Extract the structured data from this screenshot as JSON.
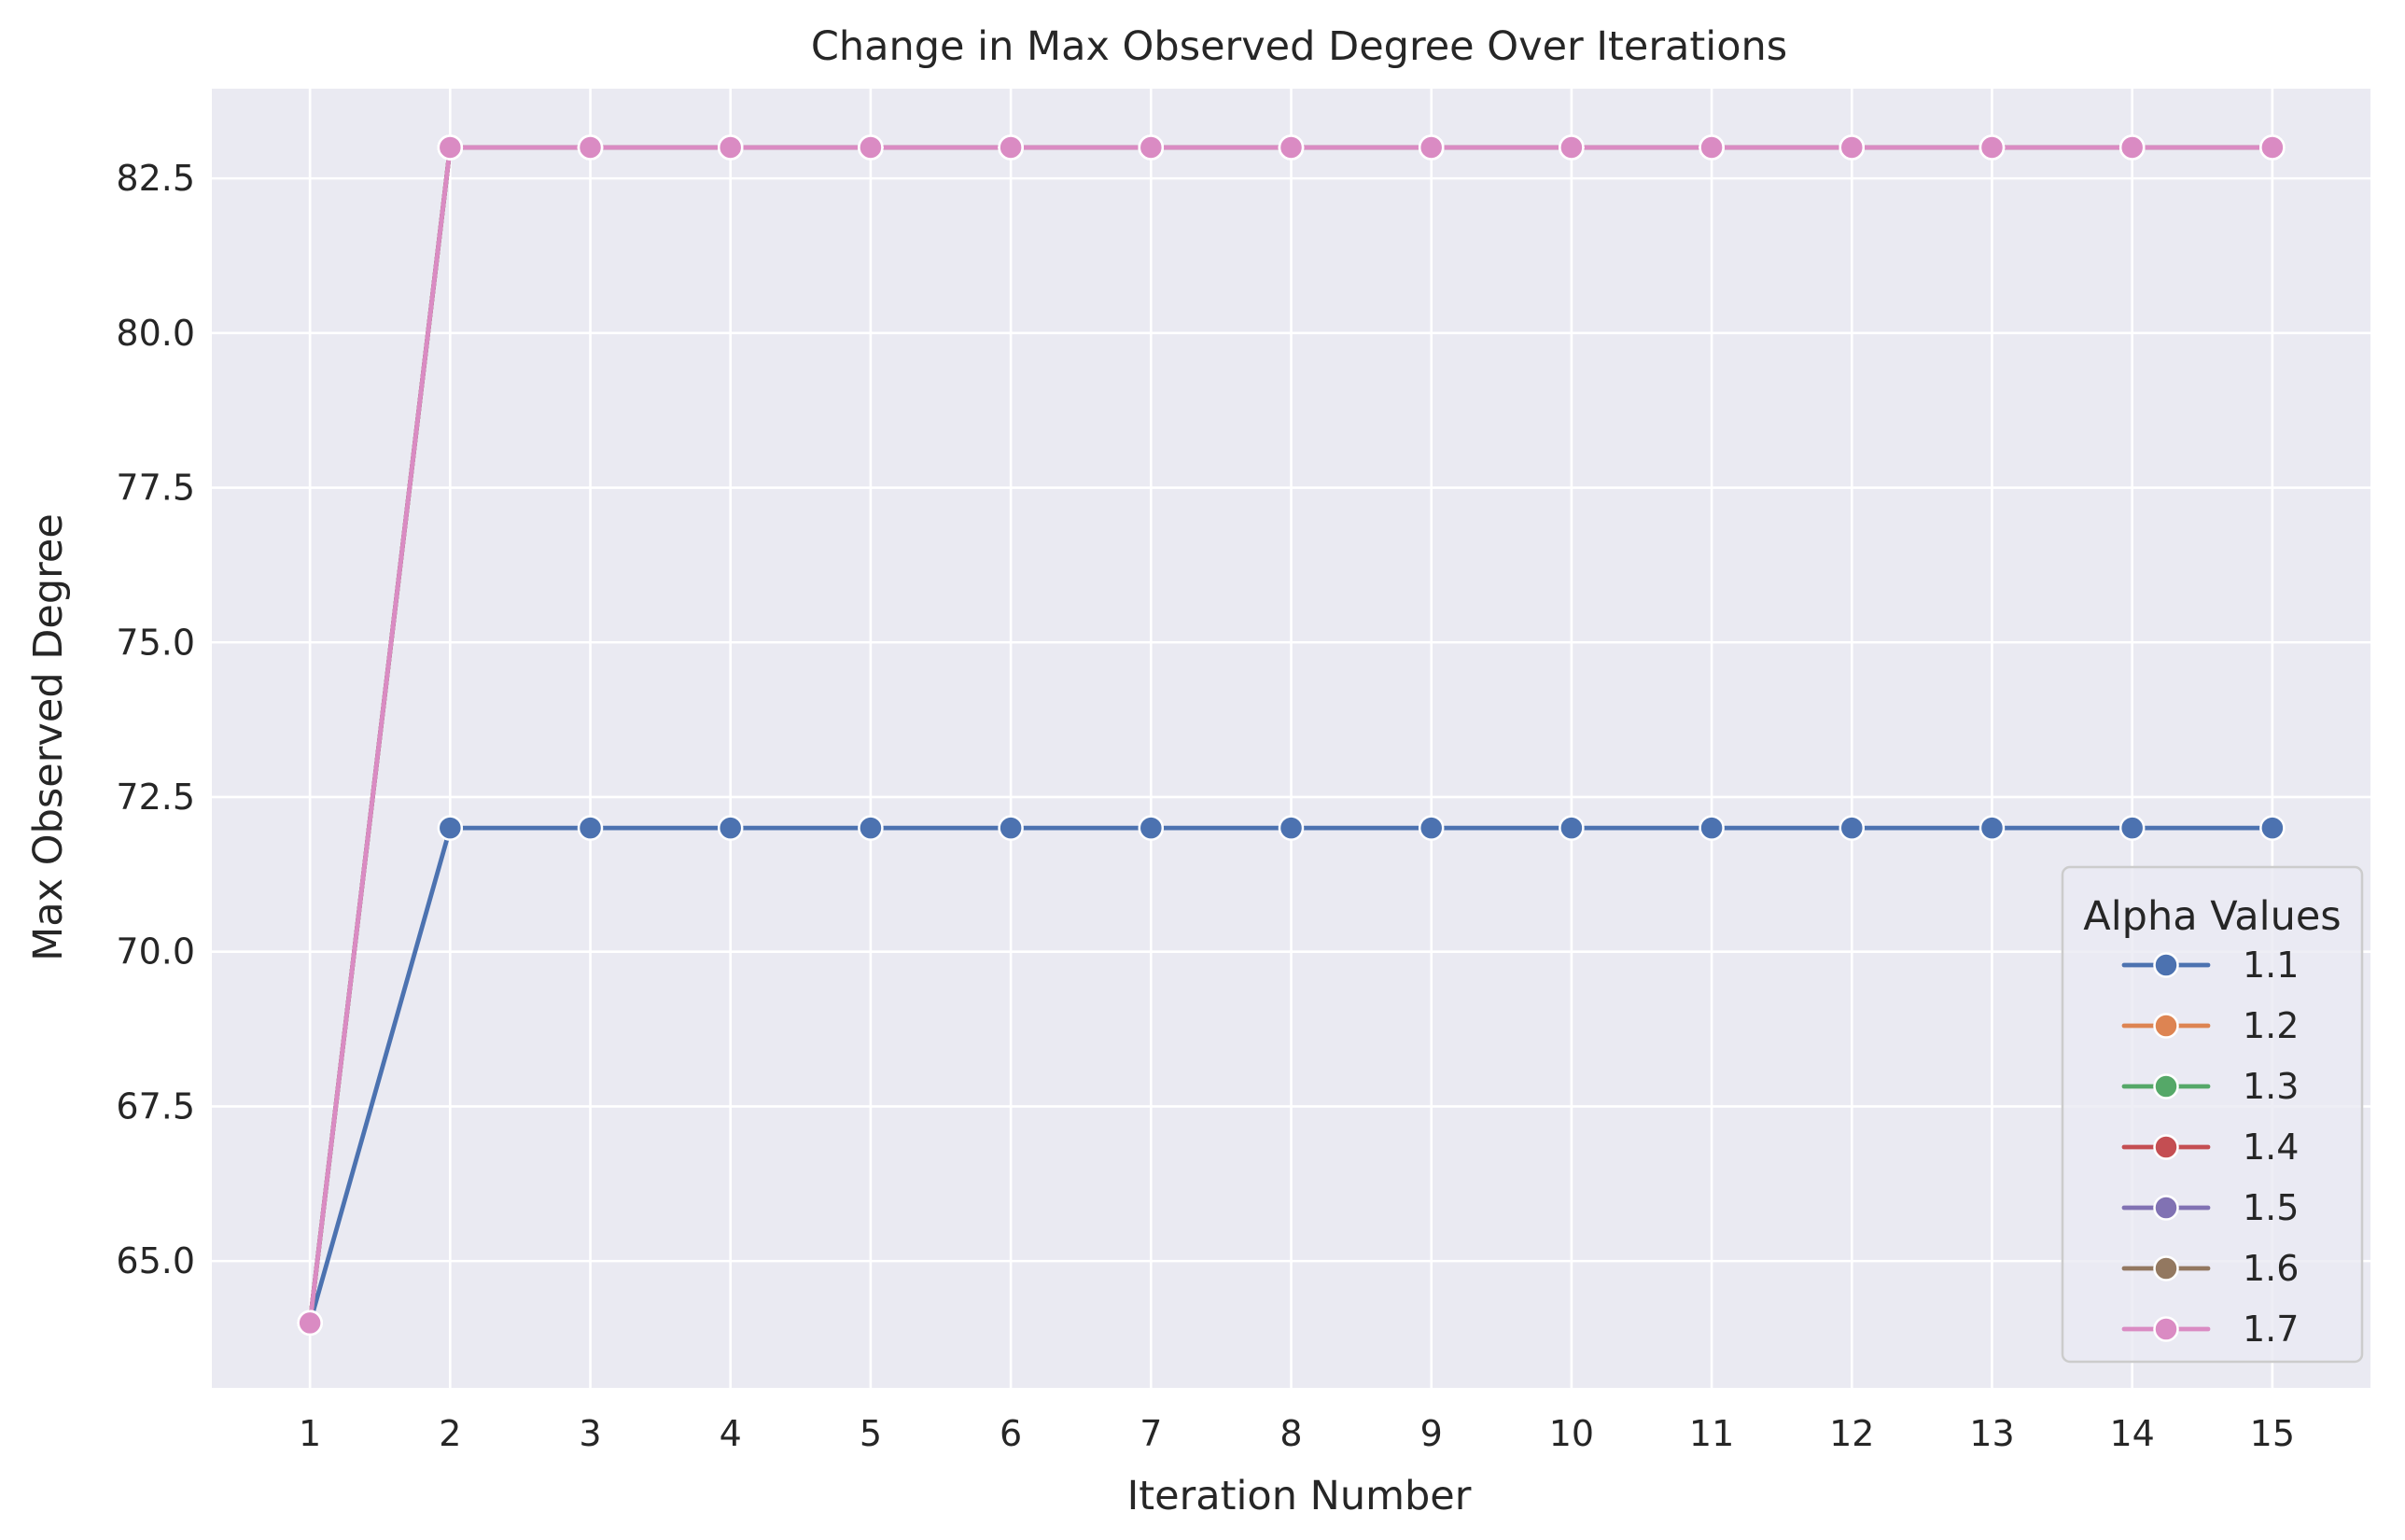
{
  "chart_data": {
    "type": "line",
    "title": "Change in Max Observed Degree Over Iterations",
    "xlabel": "Iteration Number",
    "ylabel": "Max Observed Degree",
    "x": [
      1,
      2,
      3,
      4,
      5,
      6,
      7,
      8,
      9,
      10,
      11,
      12,
      13,
      14,
      15
    ],
    "x_tick_labels": [
      "1",
      "2",
      "3",
      "4",
      "5",
      "6",
      "7",
      "8",
      "9",
      "10",
      "11",
      "12",
      "13",
      "14",
      "15"
    ],
    "xlim": [
      0.3,
      15.7
    ],
    "ylim": [
      62.95,
      83.95
    ],
    "y_ticks": [
      65.0,
      67.5,
      70.0,
      72.5,
      75.0,
      77.5,
      80.0,
      82.5
    ],
    "y_tick_labels": [
      "65.0",
      "67.5",
      "70.0",
      "72.5",
      "75.0",
      "77.5",
      "80.0",
      "82.5"
    ],
    "grid": true,
    "marker": "circle",
    "legend": {
      "title": "Alpha Values",
      "placement": "lower right"
    },
    "series": [
      {
        "name": "1.1",
        "color": "#4c72b0",
        "values": [
          64,
          72,
          72,
          72,
          72,
          72,
          72,
          72,
          72,
          72,
          72,
          72,
          72,
          72,
          72
        ]
      },
      {
        "name": "1.2",
        "color": "#dd8452",
        "values": [
          64,
          83,
          83,
          83,
          83,
          83,
          83,
          83,
          83,
          83,
          83,
          83,
          83,
          83,
          83
        ]
      },
      {
        "name": "1.3",
        "color": "#55a868",
        "values": [
          64,
          83,
          83,
          83,
          83,
          83,
          83,
          83,
          83,
          83,
          83,
          83,
          83,
          83,
          83
        ]
      },
      {
        "name": "1.4",
        "color": "#c44e52",
        "values": [
          64,
          83,
          83,
          83,
          83,
          83,
          83,
          83,
          83,
          83,
          83,
          83,
          83,
          83,
          83
        ]
      },
      {
        "name": "1.5",
        "color": "#8172b3",
        "values": [
          64,
          83,
          83,
          83,
          83,
          83,
          83,
          83,
          83,
          83,
          83,
          83,
          83,
          83,
          83
        ]
      },
      {
        "name": "1.6",
        "color": "#937860",
        "values": [
          64,
          83,
          83,
          83,
          83,
          83,
          83,
          83,
          83,
          83,
          83,
          83,
          83,
          83,
          83
        ]
      },
      {
        "name": "1.7",
        "color": "#da8bc3",
        "values": [
          64,
          83,
          83,
          83,
          83,
          83,
          83,
          83,
          83,
          83,
          83,
          83,
          83,
          83,
          83
        ]
      }
    ],
    "colors": {
      "plot_background": "#eaeaf2",
      "grid": "#ffffff",
      "text": "#262626"
    }
  }
}
